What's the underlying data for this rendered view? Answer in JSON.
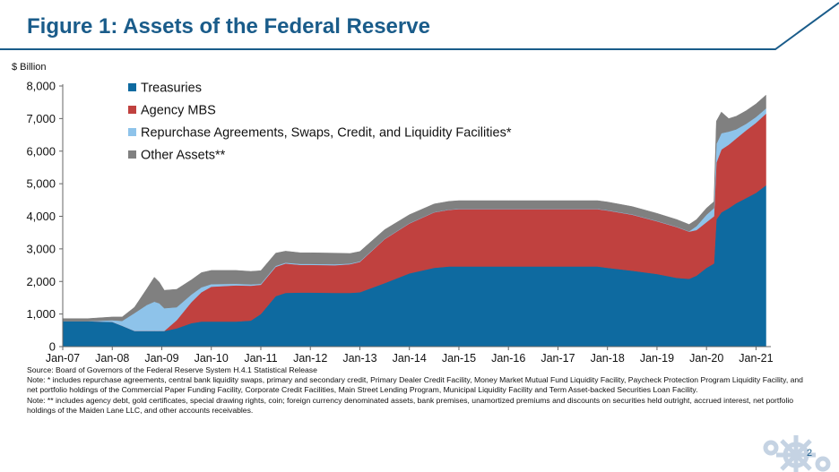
{
  "page": {
    "title": "Figure 1: Assets of the Federal Reserve",
    "page_number": "2",
    "source": "Source: Board of Governors of the Federal Reserve System H.4.1 Statistical Release",
    "note1": "Note: * includes repurchase agreements, central bank liquidity swaps, primary and secondary credit, Primary Dealer Credit Facility, Money Market Mutual Fund Liquidity Facility, Paycheck Protection Program Liquidity Facility, and net portfolio holdings of the Commercial Paper Funding Facility, Corporate Credit Facilities, Main Street Lending Program, Municipal Liquidity Facility and Term Asset-backed Securities Loan Facility.",
    "note2": "Note: ** includes agency debt,  gold certificates, special drawing rights, coin; foreign currency denominated assets, bank premises, unamortized premiums and discounts on securities held outright, accrued interest, net portfolio holdings of the Maiden Lane LLC, and other accounts receivables.",
    "accent_color": "#1a5c8a"
  },
  "chart_data": {
    "type": "area",
    "stacked": true,
    "ylabel": "$ Billion",
    "ylim": [
      0,
      8000
    ],
    "yticks": [
      0,
      1000,
      2000,
      3000,
      4000,
      5000,
      6000,
      7000,
      8000
    ],
    "ytick_labels": [
      "0",
      "1,000",
      "2,000",
      "3,000",
      "4,000",
      "5,000",
      "6,000",
      "7,000",
      "8,000"
    ],
    "xlim": [
      2007.0,
      2021.3
    ],
    "xticks": [
      2007,
      2008,
      2009,
      2010,
      2011,
      2012,
      2013,
      2014,
      2015,
      2016,
      2017,
      2018,
      2019,
      2020,
      2021
    ],
    "xtick_labels": [
      "Jan-07",
      "Jan-08",
      "Jan-09",
      "Jan-10",
      "Jan-11",
      "Jan-12",
      "Jan-13",
      "Jan-14",
      "Jan-15",
      "Jan-16",
      "Jan-17",
      "Jan-18",
      "Jan-19",
      "Jan-20",
      "Jan-21"
    ],
    "legend_position": "top-left",
    "grid": false,
    "x": [
      2007.0,
      2007.5,
      2008.0,
      2008.2,
      2008.45,
      2008.7,
      2008.85,
      2008.95,
      2009.05,
      2009.3,
      2009.6,
      2009.8,
      2010.0,
      2010.5,
      2010.8,
      2011.0,
      2011.3,
      2011.5,
      2011.8,
      2012.0,
      2012.5,
      2012.8,
      2013.0,
      2013.5,
      2014.0,
      2014.5,
      2014.8,
      2015.0,
      2016.0,
      2017.0,
      2017.8,
      2018.0,
      2018.5,
      2019.0,
      2019.4,
      2019.65,
      2019.8,
      2020.0,
      2020.15,
      2020.2,
      2020.3,
      2020.45,
      2020.6,
      2020.8,
      2021.0,
      2021.2
    ],
    "series": [
      {
        "name": "Treasuries",
        "color": "#0e6aa0",
        "values": [
          780,
          780,
          760,
          640,
          480,
          480,
          480,
          480,
          480,
          560,
          720,
          770,
          770,
          770,
          800,
          1000,
          1550,
          1650,
          1660,
          1660,
          1650,
          1650,
          1670,
          1950,
          2250,
          2420,
          2460,
          2460,
          2460,
          2460,
          2460,
          2420,
          2330,
          2230,
          2110,
          2080,
          2180,
          2420,
          2550,
          3900,
          4120,
          4250,
          4400,
          4560,
          4720,
          4950
        ]
      },
      {
        "name": "Agency MBS",
        "color": "#c0413f",
        "values": [
          0,
          0,
          0,
          0,
          0,
          0,
          0,
          0,
          0,
          250,
          650,
          900,
          1070,
          1110,
          1070,
          900,
          900,
          900,
          850,
          850,
          850,
          880,
          930,
          1350,
          1530,
          1700,
          1740,
          1760,
          1760,
          1760,
          1760,
          1760,
          1720,
          1620,
          1560,
          1450,
          1400,
          1400,
          1450,
          1750,
          1930,
          1950,
          1990,
          2080,
          2150,
          2200
        ]
      },
      {
        "name": "Repurchase Agreements, Swaps, Credit, and Liquidity Facilities*",
        "color": "#8ec3ea",
        "values": [
          0,
          0,
          50,
          150,
          550,
          800,
          900,
          850,
          700,
          400,
          230,
          150,
          80,
          50,
          40,
          30,
          30,
          30,
          30,
          30,
          30,
          20,
          20,
          10,
          10,
          10,
          10,
          10,
          10,
          10,
          10,
          10,
          10,
          10,
          10,
          10,
          120,
          230,
          250,
          570,
          500,
          400,
          280,
          200,
          180,
          160
        ]
      },
      {
        "name": "Other Assets**",
        "color": "#808080",
        "values": [
          80,
          80,
          100,
          120,
          180,
          500,
          750,
          650,
          550,
          550,
          450,
          450,
          420,
          410,
          400,
          400,
          390,
          350,
          340,
          340,
          340,
          310,
          300,
          280,
          260,
          250,
          250,
          250,
          250,
          250,
          250,
          250,
          240,
          230,
          220,
          210,
          200,
          200,
          200,
          700,
          650,
          400,
          400,
          400,
          400,
          410
        ]
      }
    ]
  }
}
